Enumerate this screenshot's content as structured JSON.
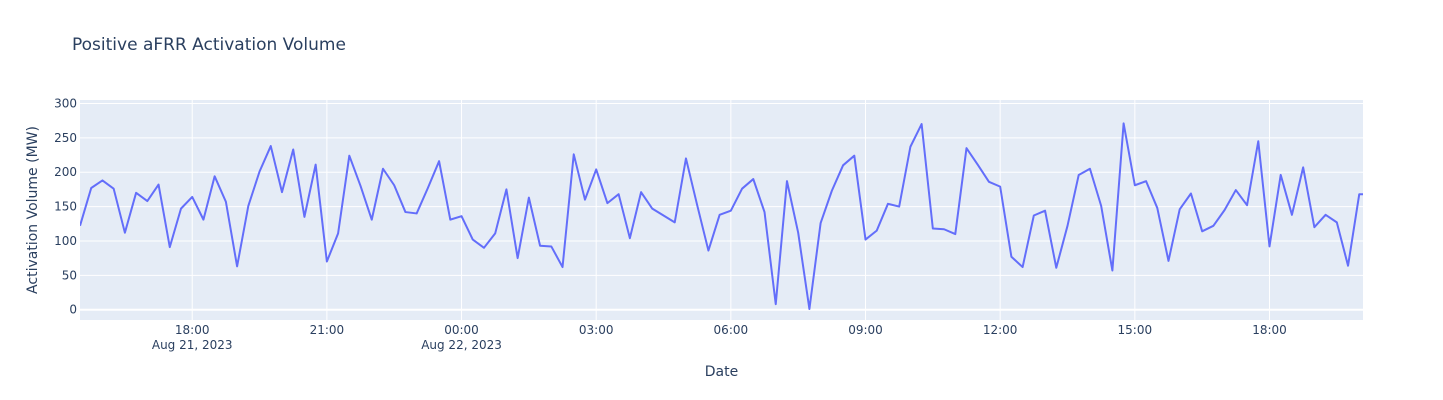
{
  "chart_data": {
    "type": "line",
    "title": "Positive aFRR Activation Volume",
    "xlabel": "Date",
    "ylabel": "Activation Volume (MW)",
    "ylim": [
      -15,
      305
    ],
    "yticks": [
      0,
      50,
      100,
      150,
      200,
      250,
      300
    ],
    "xrange": [
      "2023-08-21 15:30",
      "2023-08-22 20:05"
    ],
    "xticks": [
      {
        "t": "2023-08-21 18:00",
        "label": "18:00",
        "sublabel": "Aug 21, 2023"
      },
      {
        "t": "2023-08-21 21:00",
        "label": "21:00",
        "sublabel": ""
      },
      {
        "t": "2023-08-22 00:00",
        "label": "00:00",
        "sublabel": "Aug 22, 2023"
      },
      {
        "t": "2023-08-22 03:00",
        "label": "03:00",
        "sublabel": ""
      },
      {
        "t": "2023-08-22 06:00",
        "label": "06:00",
        "sublabel": ""
      },
      {
        "t": "2023-08-22 09:00",
        "label": "09:00",
        "sublabel": ""
      },
      {
        "t": "2023-08-22 12:00",
        "label": "12:00",
        "sublabel": ""
      },
      {
        "t": "2023-08-22 15:00",
        "label": "15:00",
        "sublabel": ""
      },
      {
        "t": "2023-08-22 18:00",
        "label": "18:00",
        "sublabel": ""
      }
    ],
    "grid": true,
    "line_color": "#636efa",
    "plot_bgcolor": "#e5ecf6",
    "series": [
      {
        "x": [
          "2023-08-21 15:30",
          "2023-08-21 15:45",
          "2023-08-21 16:00",
          "2023-08-21 16:15",
          "2023-08-21 16:30",
          "2023-08-21 16:45",
          "2023-08-21 17:00",
          "2023-08-21 17:15",
          "2023-08-21 17:30",
          "2023-08-21 17:45",
          "2023-08-21 18:00",
          "2023-08-21 18:15",
          "2023-08-21 18:30",
          "2023-08-21 18:45",
          "2023-08-21 19:00",
          "2023-08-21 19:15",
          "2023-08-21 19:30",
          "2023-08-21 19:45",
          "2023-08-21 20:00",
          "2023-08-21 20:15",
          "2023-08-21 20:30",
          "2023-08-21 20:45",
          "2023-08-21 21:00",
          "2023-08-21 21:15",
          "2023-08-21 21:30",
          "2023-08-21 21:45",
          "2023-08-21 22:00",
          "2023-08-21 22:15",
          "2023-08-21 22:30",
          "2023-08-21 22:45",
          "2023-08-21 23:00",
          "2023-08-21 23:15",
          "2023-08-21 23:30",
          "2023-08-21 23:45",
          "2023-08-22 00:00",
          "2023-08-22 00:15",
          "2023-08-22 00:30",
          "2023-08-22 00:45",
          "2023-08-22 01:00",
          "2023-08-22 01:15",
          "2023-08-22 01:30",
          "2023-08-22 01:45",
          "2023-08-22 02:00",
          "2023-08-22 02:15",
          "2023-08-22 02:30",
          "2023-08-22 02:45",
          "2023-08-22 03:00",
          "2023-08-22 03:15",
          "2023-08-22 03:30",
          "2023-08-22 03:45",
          "2023-08-22 04:00",
          "2023-08-22 04:15",
          "2023-08-22 04:30",
          "2023-08-22 04:45",
          "2023-08-22 05:00",
          "2023-08-22 05:15",
          "2023-08-22 05:30",
          "2023-08-22 05:45",
          "2023-08-22 06:00",
          "2023-08-22 06:15",
          "2023-08-22 06:30",
          "2023-08-22 06:45",
          "2023-08-22 07:00",
          "2023-08-22 07:15",
          "2023-08-22 07:30",
          "2023-08-22 07:45",
          "2023-08-22 08:00",
          "2023-08-22 08:15",
          "2023-08-22 08:30",
          "2023-08-22 08:45",
          "2023-08-22 09:00",
          "2023-08-22 09:15",
          "2023-08-22 09:30",
          "2023-08-22 09:45",
          "2023-08-22 10:00",
          "2023-08-22 10:15",
          "2023-08-22 10:30",
          "2023-08-22 10:45",
          "2023-08-22 11:00",
          "2023-08-22 11:15",
          "2023-08-22 11:30",
          "2023-08-22 11:45",
          "2023-08-22 12:00",
          "2023-08-22 12:15",
          "2023-08-22 12:30",
          "2023-08-22 12:45",
          "2023-08-22 13:00",
          "2023-08-22 13:15",
          "2023-08-22 13:30",
          "2023-08-22 13:45",
          "2023-08-22 14:00",
          "2023-08-22 14:15",
          "2023-08-22 14:30",
          "2023-08-22 14:45",
          "2023-08-22 15:00",
          "2023-08-22 15:15",
          "2023-08-22 15:30",
          "2023-08-22 15:45",
          "2023-08-22 16:00",
          "2023-08-22 16:15",
          "2023-08-22 16:30",
          "2023-08-22 16:45",
          "2023-08-22 17:00",
          "2023-08-22 17:15",
          "2023-08-22 17:30",
          "2023-08-22 17:45",
          "2023-08-22 18:00",
          "2023-08-22 18:15",
          "2023-08-22 18:30",
          "2023-08-22 18:45",
          "2023-08-22 19:00",
          "2023-08-22 19:15",
          "2023-08-22 19:30",
          "2023-08-22 19:45",
          "2023-08-22 20:00",
          "2023-08-22 20:15"
        ],
        "y": [
          122,
          177,
          188,
          176,
          112,
          170,
          158,
          182,
          91,
          147,
          164,
          131,
          194,
          157,
          63,
          151,
          201,
          238,
          171,
          233,
          135,
          211,
          70,
          111,
          224,
          180,
          131,
          205,
          181,
          142,
          140,
          177,
          216,
          131,
          136,
          102,
          90,
          111,
          175,
          75,
          163,
          93,
          92,
          62,
          226,
          160,
          204,
          155,
          168,
          104,
          171,
          147,
          137,
          127,
          220,
          152,
          86,
          138,
          144,
          176,
          190,
          142,
          8,
          187,
          112,
          1,
          126,
          173,
          210,
          224,
          102,
          115,
          154,
          150,
          237,
          270,
          118,
          117,
          110,
          235,
          211,
          186,
          179,
          77,
          62,
          137,
          144,
          61,
          122,
          196,
          205,
          151,
          57,
          271,
          181,
          187,
          148,
          71,
          146,
          169,
          114,
          122,
          145,
          174,
          152,
          245,
          92,
          196,
          138,
          207,
          120,
          138,
          127,
          64,
          168,
          168
        ]
      }
    ]
  }
}
